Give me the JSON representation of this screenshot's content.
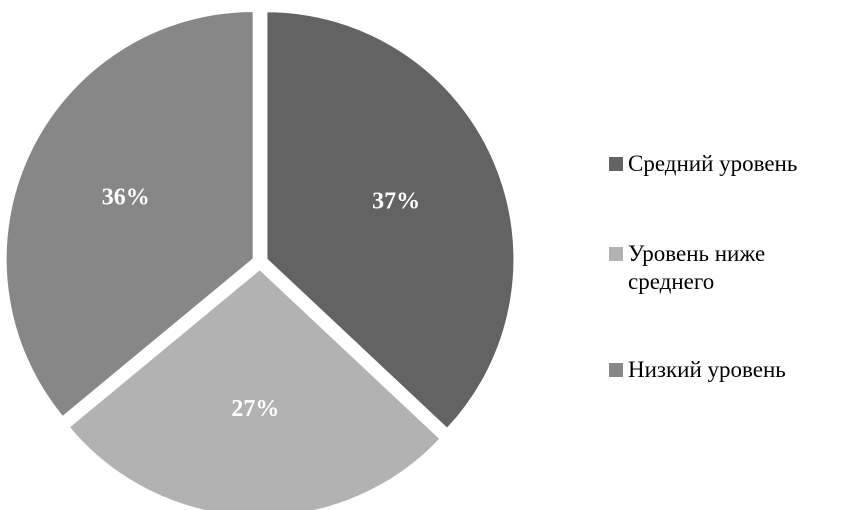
{
  "chart_data": {
    "type": "pie",
    "title": "",
    "slices": [
      {
        "label": "Средний уровень",
        "value": 37,
        "display": "37%",
        "color": "#636363"
      },
      {
        "label": "Уровень ниже среднего",
        "value": 27,
        "display": "27%",
        "color": "#b2b2b2"
      },
      {
        "label": "Низкий уровень",
        "value": 36,
        "display": "36%",
        "color": "#878787"
      }
    ],
    "start_angle_deg": 0,
    "direction": "clockwise",
    "exploded": true,
    "legend_position": "right"
  }
}
